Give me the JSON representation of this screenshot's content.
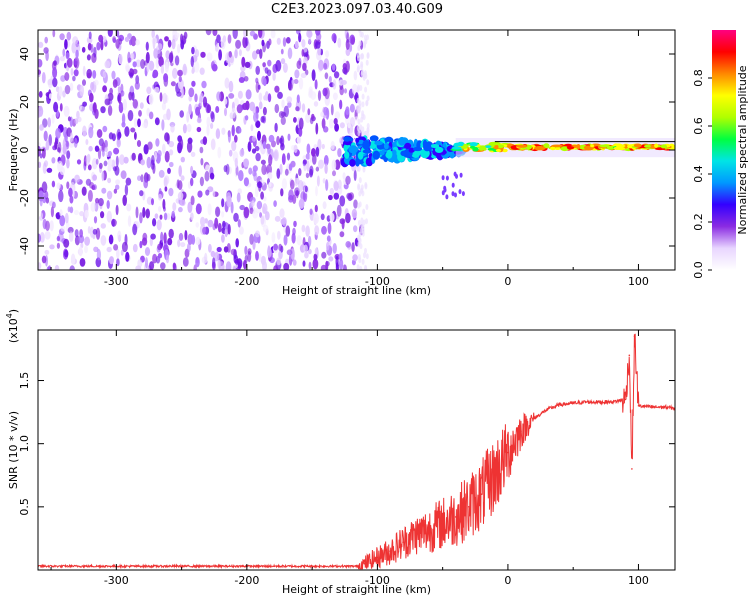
{
  "title": "C2E3.2023.097.03.40.G09",
  "chart_data": [
    {
      "type": "heatmap",
      "xlabel": "Height of straight line (km)",
      "ylabel": "Frequency (Hz)",
      "xlim": [
        -360,
        128
      ],
      "ylim": [
        -50,
        50
      ],
      "xticks": [
        -300,
        -200,
        -100,
        0,
        100
      ],
      "yticks": [
        -40,
        -20,
        0,
        20,
        40
      ],
      "colorbar": {
        "label": "Normalized spectral amplitude",
        "range": [
          0,
          1
        ],
        "ticks": [
          0.0,
          0.2,
          0.4,
          0.6,
          0.8
        ],
        "colormap": [
          "#ffffff",
          "#e8d5ff",
          "#8a2be2",
          "#3300ff",
          "#0099ff",
          "#00e5e5",
          "#00ff40",
          "#b0ff00",
          "#ffff00",
          "#ff8800",
          "#ff0000",
          "#ff0080"
        ]
      },
      "regions": [
        {
          "x": [
            -360,
            -112
          ],
          "freq": [
            -50,
            50
          ],
          "amplitude": [
            0.0,
            0.15
          ],
          "note": "broadband noise"
        },
        {
          "x": [
            -125,
            -40
          ],
          "freq": [
            -5,
            5
          ],
          "amplitude": [
            0.1,
            0.5
          ]
        },
        {
          "x": [
            -40,
            0
          ],
          "freq": [
            -2,
            3
          ],
          "amplitude": [
            0.3,
            0.9
          ]
        },
        {
          "x": [
            0,
            128
          ],
          "freq": [
            0.5,
            3
          ],
          "amplitude": [
            0.6,
            1.0
          ]
        }
      ],
      "grid": false
    },
    {
      "type": "line",
      "xlabel": "Height of straight line (km)",
      "ylabel": "SNR (10 * v/v)",
      "yscale_label": "(x10",
      "yscale_exp": "4",
      "yscale_close": ")",
      "xlim": [
        -360,
        128
      ],
      "ylim": [
        0,
        1.9
      ],
      "xticks": [
        -300,
        -200,
        -100,
        0,
        100
      ],
      "yticks": [
        0.5,
        1.0,
        1.5
      ],
      "series": [
        {
          "color": "#ee3333",
          "x": [
            -360,
            -300,
            -200,
            -150,
            -115,
            -110,
            -100,
            -90,
            -80,
            -70,
            -60,
            -50,
            -40,
            -30,
            -20,
            -10,
            0,
            10,
            20,
            30,
            40,
            50,
            60,
            70,
            80,
            85,
            90,
            93,
            95,
            97,
            100,
            110,
            120,
            128
          ],
          "y": [
            0.03,
            0.03,
            0.03,
            0.03,
            0.03,
            0.05,
            0.1,
            0.15,
            0.22,
            0.28,
            0.32,
            0.37,
            0.42,
            0.5,
            0.6,
            0.75,
            0.93,
            1.1,
            1.2,
            1.27,
            1.31,
            1.32,
            1.33,
            1.33,
            1.33,
            1.34,
            1.35,
            1.7,
            0.8,
            1.85,
            1.3,
            1.29,
            1.29,
            1.28
          ]
        }
      ],
      "grid": false
    }
  ]
}
